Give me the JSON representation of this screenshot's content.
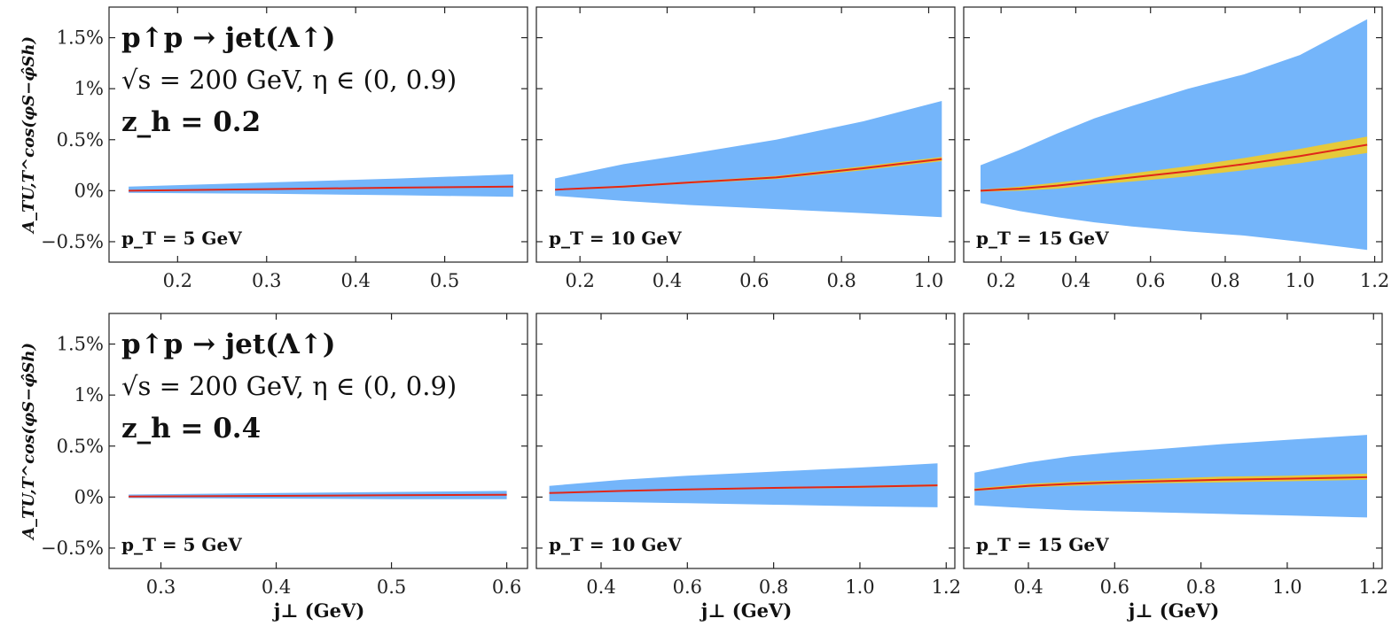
{
  "figure": {
    "y_axis_label": "A_TU,T^cos(φS−φ̂Sh)",
    "x_axis_label": "j⊥ (GeV)",
    "process": "p↑p → jet(Λ↑)",
    "kinematics": "√s = 200 GeV,  η ∈ (0, 0.9)",
    "colors": {
      "outer_band": "#74b5fa",
      "inner_band": "#e6c93b",
      "central_line": "#e0261a",
      "axes": "#222222"
    }
  },
  "chart_data": [
    {
      "type": "area",
      "row": 0,
      "col": 0,
      "zh_label": "z_h = 0.2",
      "pt_label": "p_T = 5 GeV",
      "xlim": [
        0.123,
        0.593
      ],
      "ylim": [
        -0.7,
        1.8
      ],
      "xticks": [
        0.2,
        0.3,
        0.4,
        0.5
      ],
      "xtick_labels": [
        "0.2",
        "0.3",
        "0.4",
        "0.5"
      ],
      "yticks": [
        -0.5,
        0,
        0.5,
        1,
        1.5
      ],
      "ytick_labels": [
        "−0.5%",
        "0%",
        "0.5%",
        "1%",
        "1.5%"
      ],
      "x": [
        0.145,
        0.3,
        0.45,
        0.577
      ],
      "central": [
        0.0,
        0.015,
        0.03,
        0.04
      ],
      "inner_upper": [
        0.005,
        0.02,
        0.035,
        0.045
      ],
      "inner_lower": [
        -0.005,
        0.01,
        0.025,
        0.035
      ],
      "outer_upper": [
        0.04,
        0.08,
        0.12,
        0.16
      ],
      "outer_lower": [
        -0.02,
        -0.03,
        -0.045,
        -0.06
      ]
    },
    {
      "type": "area",
      "row": 0,
      "col": 1,
      "zh_label": "",
      "pt_label": "p_T = 10 GeV",
      "xlim": [
        0.1,
        1.06
      ],
      "ylim": [
        -0.7,
        1.8
      ],
      "xticks": [
        0.2,
        0.4,
        0.6,
        0.8,
        1.0
      ],
      "xtick_labels": [
        "0.2",
        "0.4",
        "0.6",
        "0.8",
        "1.0"
      ],
      "yticks": [
        -0.5,
        0,
        0.5,
        1,
        1.5
      ],
      "ytick_labels": [
        "",
        "",
        "",
        "",
        ""
      ],
      "x": [
        0.143,
        0.3,
        0.45,
        0.65,
        0.85,
        1.03
      ],
      "central": [
        0.01,
        0.04,
        0.08,
        0.13,
        0.22,
        0.31
      ],
      "inner_upper": [
        0.015,
        0.05,
        0.09,
        0.145,
        0.24,
        0.33
      ],
      "inner_lower": [
        0.005,
        0.03,
        0.07,
        0.115,
        0.2,
        0.29
      ],
      "outer_upper": [
        0.12,
        0.26,
        0.36,
        0.5,
        0.68,
        0.88
      ],
      "outer_lower": [
        -0.05,
        -0.1,
        -0.14,
        -0.18,
        -0.22,
        -0.26
      ]
    },
    {
      "type": "area",
      "row": 0,
      "col": 2,
      "zh_label": "",
      "pt_label": "p_T = 15 GeV",
      "xlim": [
        0.1,
        1.22
      ],
      "ylim": [
        -0.7,
        1.8
      ],
      "xticks": [
        0.2,
        0.4,
        0.6,
        0.8,
        1.0,
        1.2
      ],
      "xtick_labels": [
        "0.2",
        "0.4",
        "0.6",
        "0.8",
        "1.0",
        "1.2"
      ],
      "yticks": [
        -0.5,
        0,
        0.5,
        1,
        1.5
      ],
      "ytick_labels": [
        "",
        "",
        "",
        "",
        ""
      ],
      "x": [
        0.145,
        0.25,
        0.35,
        0.45,
        0.55,
        0.7,
        0.85,
        1.0,
        1.18
      ],
      "central": [
        0.0,
        0.02,
        0.05,
        0.09,
        0.13,
        0.19,
        0.26,
        0.34,
        0.45
      ],
      "inner_upper": [
        0.01,
        0.04,
        0.08,
        0.12,
        0.17,
        0.24,
        0.32,
        0.41,
        0.53
      ],
      "inner_lower": [
        -0.01,
        0.0,
        0.02,
        0.06,
        0.09,
        0.14,
        0.2,
        0.27,
        0.37
      ],
      "outer_upper": [
        0.25,
        0.4,
        0.56,
        0.71,
        0.83,
        1.0,
        1.14,
        1.33,
        1.68
      ],
      "outer_lower": [
        -0.12,
        -0.2,
        -0.26,
        -0.31,
        -0.35,
        -0.4,
        -0.44,
        -0.5,
        -0.58
      ]
    },
    {
      "type": "area",
      "row": 1,
      "col": 0,
      "zh_label": "z_h = 0.4",
      "pt_label": "p_T = 5 GeV",
      "xlim": [
        0.255,
        0.618
      ],
      "ylim": [
        -0.7,
        1.8
      ],
      "xticks": [
        0.3,
        0.4,
        0.5,
        0.6
      ],
      "xtick_labels": [
        "0.3",
        "0.4",
        "0.5",
        "0.6"
      ],
      "yticks": [
        -0.5,
        0,
        0.5,
        1,
        1.5
      ],
      "ytick_labels": [
        "−0.5%",
        "0%",
        "0.5%",
        "1%",
        "1.5%"
      ],
      "x": [
        0.272,
        0.4,
        0.5,
        0.6
      ],
      "central": [
        0.005,
        0.012,
        0.018,
        0.022
      ],
      "inner_upper": [
        0.008,
        0.015,
        0.021,
        0.026
      ],
      "inner_lower": [
        0.002,
        0.009,
        0.015,
        0.018
      ],
      "outer_upper": [
        0.025,
        0.04,
        0.05,
        0.06
      ],
      "outer_lower": [
        -0.01,
        -0.015,
        -0.02,
        -0.02
      ]
    },
    {
      "type": "area",
      "row": 1,
      "col": 1,
      "zh_label": "",
      "pt_label": "p_T = 10 GeV",
      "xlim": [
        0.25,
        1.22
      ],
      "ylim": [
        -0.7,
        1.8
      ],
      "xticks": [
        0.4,
        0.6,
        0.8,
        1.0,
        1.2
      ],
      "xtick_labels": [
        "0.4",
        "0.6",
        "0.8",
        "1.0",
        "1.2"
      ],
      "yticks": [
        -0.5,
        0,
        0.5,
        1,
        1.5
      ],
      "ytick_labels": [
        "",
        "",
        "",
        "",
        ""
      ],
      "x": [
        0.28,
        0.45,
        0.6,
        0.8,
        1.0,
        1.18
      ],
      "central": [
        0.04,
        0.06,
        0.075,
        0.09,
        0.1,
        0.115
      ],
      "inner_upper": [
        0.045,
        0.066,
        0.082,
        0.098,
        0.11,
        0.125
      ],
      "inner_lower": [
        0.035,
        0.054,
        0.068,
        0.082,
        0.09,
        0.105
      ],
      "outer_upper": [
        0.11,
        0.17,
        0.21,
        0.25,
        0.29,
        0.33
      ],
      "outer_lower": [
        -0.04,
        -0.05,
        -0.06,
        -0.075,
        -0.09,
        -0.1
      ]
    },
    {
      "type": "area",
      "row": 1,
      "col": 2,
      "zh_label": "",
      "pt_label": "p_T = 15 GeV",
      "xlim": [
        0.25,
        1.22
      ],
      "ylim": [
        -0.7,
        1.8
      ],
      "xticks": [
        0.4,
        0.6,
        0.8,
        1.0,
        1.2
      ],
      "xtick_labels": [
        "0.4",
        "0.6",
        "0.8",
        "1.0",
        "1.2"
      ],
      "yticks": [
        -0.5,
        0,
        0.5,
        1,
        1.5
      ],
      "ytick_labels": [
        "",
        "",
        "",
        "",
        ""
      ],
      "x": [
        0.275,
        0.4,
        0.5,
        0.6,
        0.7,
        0.85,
        1.0,
        1.185
      ],
      "central": [
        0.07,
        0.11,
        0.13,
        0.145,
        0.155,
        0.17,
        0.18,
        0.195
      ],
      "inner_upper": [
        0.085,
        0.13,
        0.15,
        0.165,
        0.18,
        0.2,
        0.21,
        0.23
      ],
      "inner_lower": [
        0.06,
        0.095,
        0.11,
        0.125,
        0.135,
        0.145,
        0.155,
        0.17
      ],
      "outer_upper": [
        0.24,
        0.34,
        0.4,
        0.44,
        0.47,
        0.52,
        0.56,
        0.61
      ],
      "outer_lower": [
        -0.08,
        -0.11,
        -0.13,
        -0.14,
        -0.15,
        -0.165,
        -0.18,
        -0.2
      ]
    }
  ]
}
